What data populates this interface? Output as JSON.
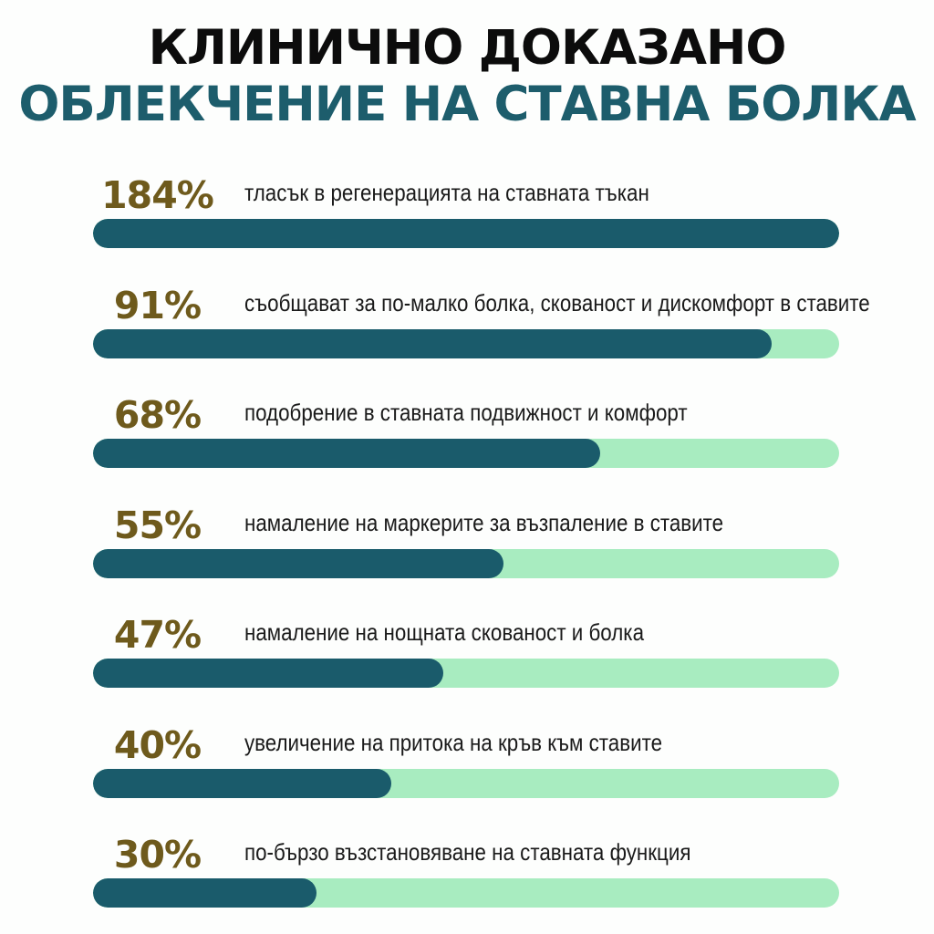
{
  "header": {
    "title_line1": "КЛИНИЧНО ДОКАЗАНО",
    "title_line2": "ОБЛЕКЧЕНИЕ НА СТАВНА БОЛКА"
  },
  "colors": {
    "title_dark": "#0c0c0c",
    "title_accent": "#1d5d6c",
    "percent": "#6e5a1c",
    "bar_fill": "#1a5b6b",
    "bar_track": "#a8ecc0"
  },
  "chart_data": {
    "type": "bar",
    "orientation": "horizontal",
    "title": "КЛИНИЧНО ДОКАЗАНО ОБЛЕКЧЕНИЕ НА СТАВНА БОЛКА",
    "xlim": [
      0,
      100
    ],
    "grid": false,
    "items": [
      {
        "percent_label": "184%",
        "value": 184,
        "label": "тласък в регенерацията на ставната тъкан"
      },
      {
        "percent_label": "91%",
        "value": 91,
        "label": "съобщават за по-малко болка, скованост и дискомфорт в ставите"
      },
      {
        "percent_label": "68%",
        "value": 68,
        "label": "подобрение в ставната подвижност и комфорт"
      },
      {
        "percent_label": "55%",
        "value": 55,
        "label": "намаление на маркерите за възпаление в ставите"
      },
      {
        "percent_label": "47%",
        "value": 47,
        "label": "намаление на нощната скованост и болка"
      },
      {
        "percent_label": "40%",
        "value": 40,
        "label": "увеличение на притока на кръв към ставите"
      },
      {
        "percent_label": "30%",
        "value": 30,
        "label": "по-бързо възстановяване на ставната функция"
      }
    ]
  }
}
